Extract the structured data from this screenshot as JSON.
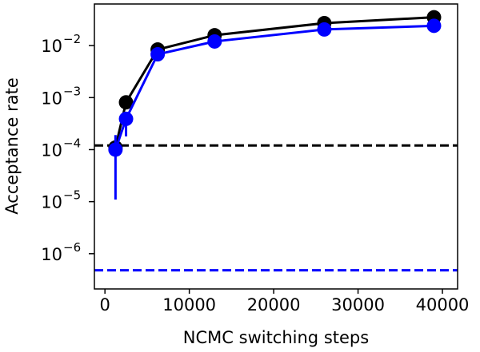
{
  "chart_data": {
    "type": "line",
    "xlabel": "NCMC switching steps",
    "ylabel": "Acceptance rate",
    "x": [
      1250,
      2500,
      6250,
      13000,
      26000,
      39000
    ],
    "series": [
      {
        "name": "black",
        "color": "#000000",
        "values": [
          0.00011,
          0.00081,
          0.0084,
          0.0158,
          0.027,
          0.035
        ]
      },
      {
        "name": "blue",
        "color": "#0000ff",
        "values": [
          0.0001,
          0.00039,
          0.0068,
          0.012,
          0.0204,
          0.024
        ],
        "err_low": [
          1.1e-05,
          0.00018,
          null,
          null,
          null,
          null
        ],
        "err_high": [
          0.00019,
          0.00045,
          null,
          null,
          null,
          null
        ]
      }
    ],
    "hlines": [
      {
        "value": 0.00012,
        "color": "#000000"
      },
      {
        "value": 4.8e-07,
        "color": "#0000ff"
      }
    ],
    "xlim": [
      -1250,
      41800
    ],
    "xticks": [
      0,
      10000,
      20000,
      30000,
      40000
    ],
    "ylim": [
      2.1e-07,
      0.063
    ],
    "ylog": true,
    "yticks": [
      {
        "value": 1e-06,
        "label": "10",
        "exponent": "−6"
      },
      {
        "value": 1e-05,
        "label": "10",
        "exponent": "−5"
      },
      {
        "value": 0.0001,
        "label": "10",
        "exponent": "−4"
      },
      {
        "value": 0.001,
        "label": "10",
        "exponent": "−3"
      },
      {
        "value": 0.01,
        "label": "10",
        "exponent": "−2"
      }
    ]
  }
}
